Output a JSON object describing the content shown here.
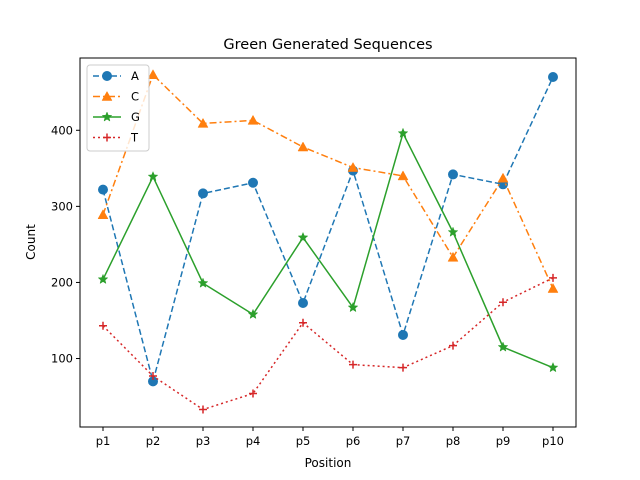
{
  "chart_data": {
    "type": "line",
    "title": "Green Generated Sequences",
    "xlabel": "Position",
    "ylabel": "Count",
    "categories": [
      "p1",
      "p2",
      "p3",
      "p4",
      "p5",
      "p6",
      "p7",
      "p8",
      "p9",
      "p10"
    ],
    "ylim": [
      10,
      495
    ],
    "yticks": [
      100,
      200,
      300,
      400
    ],
    "grid": false,
    "legend_position": "top-left",
    "series": [
      {
        "name": "A",
        "values": [
          322,
          70,
          317,
          331,
          173,
          347,
          131,
          342,
          329,
          470
        ],
        "color": "#1f77b4",
        "linestyle": "dashed",
        "marker": "circle"
      },
      {
        "name": "C",
        "values": [
          289,
          473,
          409,
          413,
          378,
          351,
          340,
          233,
          337,
          192
        ],
        "color": "#ff7f0e",
        "linestyle": "dashdot",
        "marker": "triangle"
      },
      {
        "name": "G",
        "values": [
          204,
          339,
          199,
          158,
          259,
          167,
          396,
          266,
          115,
          88
        ],
        "color": "#2ca02c",
        "linestyle": "solid",
        "marker": "star"
      },
      {
        "name": "T",
        "values": [
          143,
          77,
          33,
          54,
          147,
          92,
          88,
          117,
          174,
          206
        ],
        "color": "#d62728",
        "linestyle": "dotted",
        "marker": "plus"
      }
    ]
  }
}
